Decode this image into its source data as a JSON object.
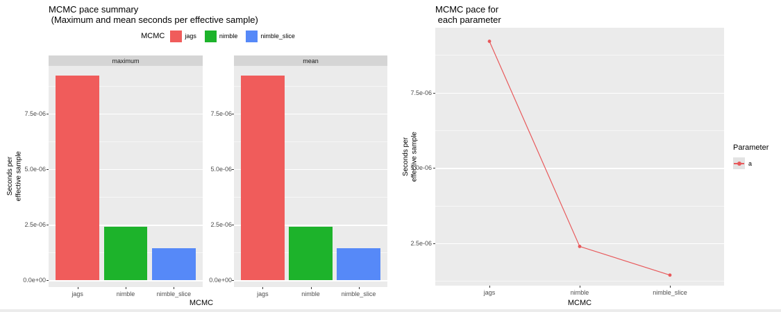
{
  "colors": {
    "panel_bg": "#EBEBEB",
    "strip_bg": "#D5D5D5",
    "grid": "#FFFFFF",
    "axis_text": "#4D4D4D",
    "legend_key_bg": "#E3E3E3"
  },
  "chart_data": [
    {
      "type": "bar",
      "title": "MCMC pace summary (Maximum and mean seconds per effective sample)",
      "title_lines": [
        "MCMC pace summary",
        " (Maximum and mean seconds per effective sample)"
      ],
      "facets": [
        "maximum",
        "mean"
      ],
      "categories": [
        "jags",
        "nimble",
        "nimble_slice"
      ],
      "series": [
        {
          "name": "maximum",
          "values": [
            9.2e-06,
            2.4e-06,
            1.45e-06
          ]
        },
        {
          "name": "mean",
          "values": [
            9.2e-06,
            2.4e-06,
            1.45e-06
          ]
        }
      ],
      "bar_colors": [
        "#F05C5B",
        "#1DB32B",
        "#5689F8"
      ],
      "legend_title": "MCMC",
      "legend_position": "top",
      "xlabel": "MCMC",
      "ylabel": "Seconds per effective sample",
      "ylabel_lines": [
        "Seconds per",
        "effective sample"
      ],
      "ylim": [
        -3e-07,
        9.65e-06
      ],
      "yticks": [
        0,
        2.5e-06,
        5e-06,
        7.5e-06
      ],
      "ytick_labels": [
        "0.0e+00",
        "2.5e-06",
        "5.0e-06",
        "7.5e-06"
      ],
      "minor_ticks": [
        1.25e-06,
        3.75e-06,
        6.25e-06,
        8.75e-06
      ],
      "grid": true
    },
    {
      "type": "line",
      "title": "MCMC pace for each parameter",
      "title_lines": [
        "MCMC pace for",
        " each parameter"
      ],
      "categories": [
        "jags",
        "nimble",
        "nimble_slice"
      ],
      "series": [
        {
          "name": "a",
          "values": [
            9.2e-06,
            2.4e-06,
            1.45e-06
          ]
        }
      ],
      "line_color": "#E8595B",
      "legend_title": "Parameter",
      "legend_position": "right",
      "xlabel": "MCMC",
      "ylabel": "Seconds per effective sample",
      "ylabel_lines": [
        "Seconds per",
        "effective sample"
      ],
      "ylim": [
        1.1e-06,
        9.65e-06
      ],
      "yticks": [
        2.5e-06,
        5e-06,
        7.5e-06
      ],
      "ytick_labels": [
        "2.5e-06",
        "5.0e-06",
        "7.5e-06"
      ],
      "minor_ticks": [
        1.25e-06,
        3.75e-06,
        6.25e-06,
        8.75e-06
      ],
      "grid": true
    }
  ]
}
